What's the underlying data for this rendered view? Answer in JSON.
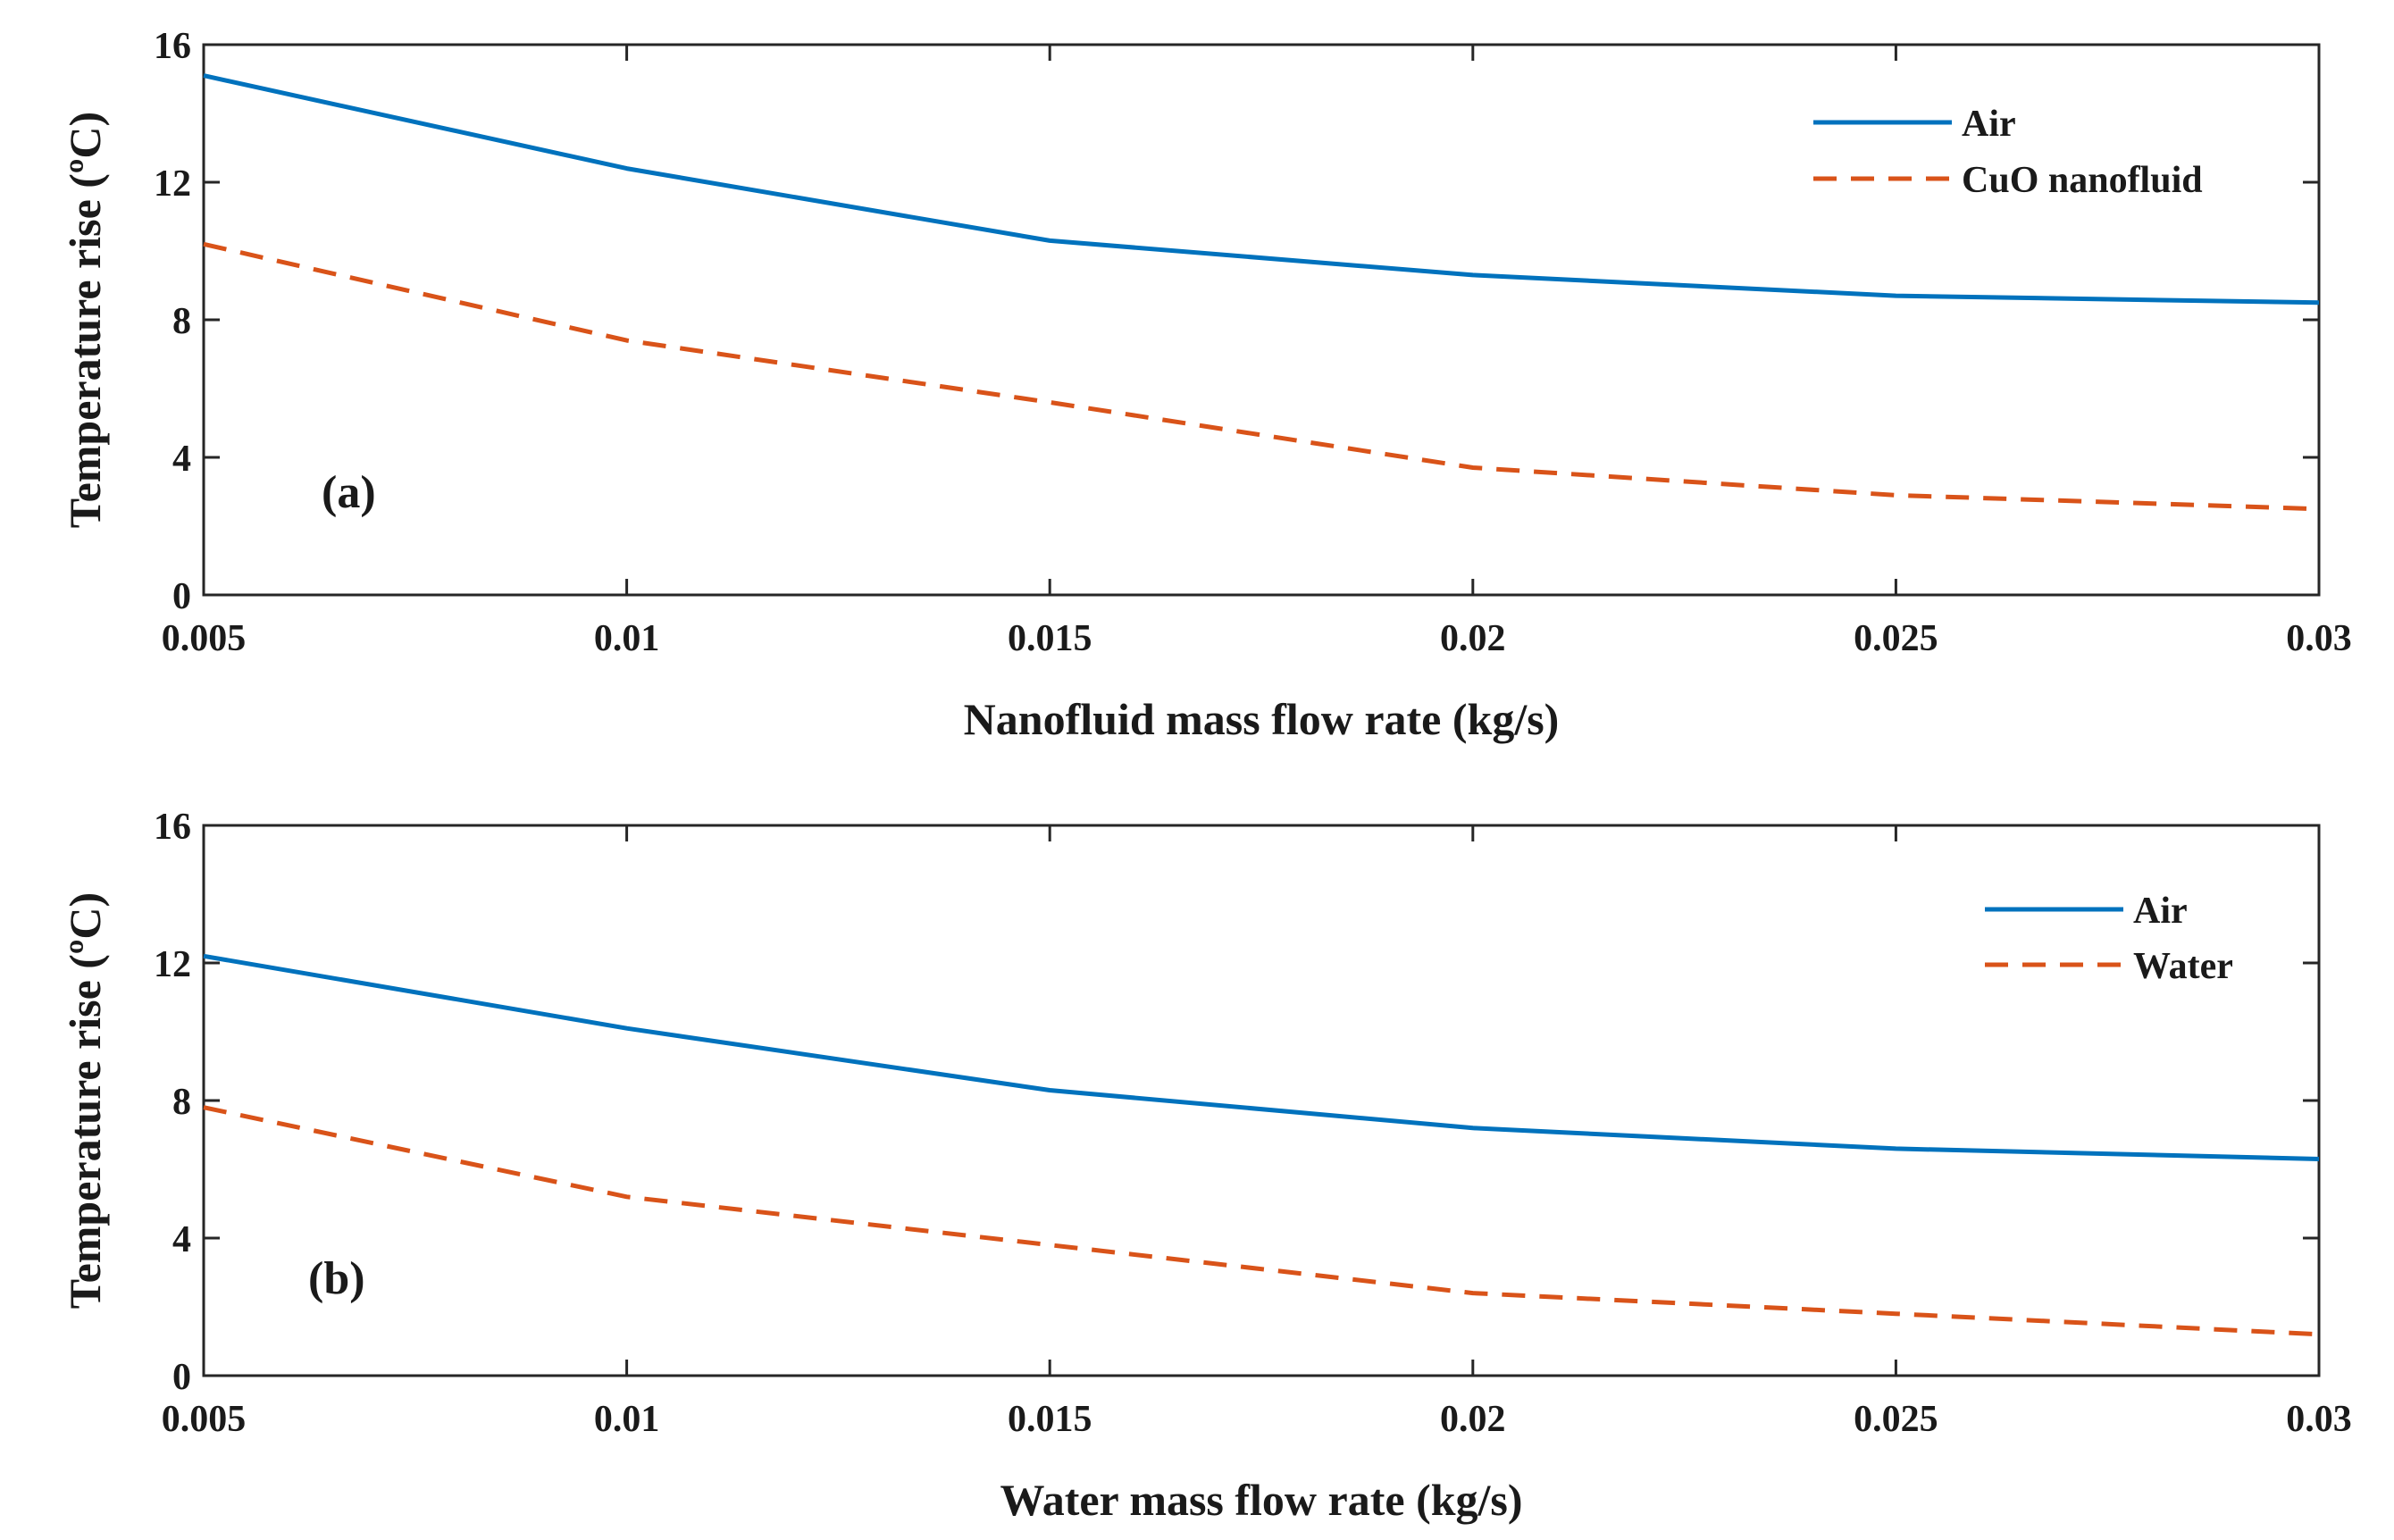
{
  "colors": {
    "air": "#0072BD",
    "secondary": "#D95319",
    "axis": "#262626"
  },
  "chart_data": [
    {
      "type": "line",
      "panel_label": "(a)",
      "xlabel": "Nanofluid mass flow rate (kg/s)",
      "ylabel": "Temperature rise (ºC)",
      "xlim": [
        0.005,
        0.03
      ],
      "ylim": [
        0,
        16
      ],
      "x_ticks": [
        "0.005",
        "0.01",
        "0.015",
        "0.02",
        "0.025",
        "0.03"
      ],
      "y_ticks": [
        "0",
        "4",
        "8",
        "12",
        "16"
      ],
      "x": [
        0.005,
        0.01,
        0.015,
        0.02,
        0.025,
        0.03
      ],
      "legend_position": "top-right",
      "series": [
        {
          "name": "Air",
          "style": "solid",
          "values": [
            15.1,
            12.4,
            10.3,
            9.3,
            8.7,
            8.5
          ]
        },
        {
          "name": "CuO nanofluid",
          "style": "dashed",
          "values": [
            10.2,
            7.4,
            5.6,
            3.7,
            2.9,
            2.5
          ]
        }
      ]
    },
    {
      "type": "line",
      "panel_label": "(b)",
      "xlabel": "Water mass flow rate (kg/s)",
      "ylabel": "Temperature rise (ºC)",
      "xlim": [
        0.005,
        0.03
      ],
      "ylim": [
        0,
        16
      ],
      "x_ticks": [
        "0.005",
        "0.01",
        "0.015",
        "0.02",
        "0.025",
        "0.03"
      ],
      "y_ticks": [
        "0",
        "4",
        "8",
        "12",
        "16"
      ],
      "x": [
        0.005,
        0.01,
        0.015,
        0.02,
        0.025,
        0.03
      ],
      "legend_position": "top-right",
      "series": [
        {
          "name": "Air",
          "style": "solid",
          "values": [
            12.2,
            10.1,
            8.3,
            7.2,
            6.6,
            6.3
          ]
        },
        {
          "name": "Water",
          "style": "dashed",
          "values": [
            7.8,
            5.2,
            3.8,
            2.4,
            1.8,
            1.2
          ]
        }
      ]
    }
  ]
}
